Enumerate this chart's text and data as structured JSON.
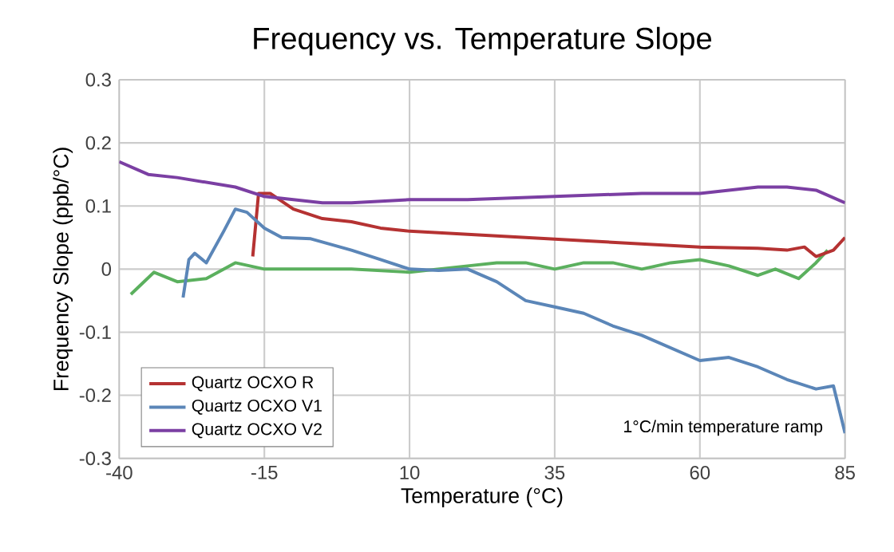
{
  "chart_data": {
    "type": "line",
    "title": "Frequency vs. Temperature Slope",
    "xlabel": "Temperature (°C)",
    "ylabel": "Frequency Slope (ppb/°C)",
    "xlim": [
      -40,
      85
    ],
    "xticks": [
      -40,
      -15,
      10,
      35,
      60,
      85
    ],
    "ylim": [
      -0.3,
      0.3
    ],
    "yticks": [
      -0.3,
      -0.2,
      -0.1,
      0,
      0.1,
      0.2,
      0.3
    ],
    "grid": true,
    "legend": "bottom left",
    "line_style": "solid",
    "marker": "none",
    "annotations": [
      "1°C/min temperature ramp"
    ],
    "series": [
      {
        "color": "#5bb05e",
        "x": [
          -38,
          -34,
          -30,
          -25,
          -20,
          -15,
          -10,
          0,
          10,
          20,
          25,
          30,
          35,
          40,
          45,
          50,
          55,
          60,
          65,
          70,
          73,
          77,
          80,
          82
        ],
        "values": [
          -0.04,
          -0.005,
          -0.02,
          -0.015,
          0.01,
          0.0,
          0.0,
          0.0,
          -0.005,
          0.005,
          0.01,
          0.01,
          0.0,
          0.01,
          0.01,
          0.0,
          0.01,
          0.015,
          0.005,
          -0.01,
          0.0,
          -0.015,
          0.01,
          0.03
        ]
      },
      {
        "name": "Quartz OCXO R",
        "color": "#b53232",
        "x": [
          -17,
          -16,
          -14,
          -10,
          -5,
          0,
          5,
          10,
          20,
          30,
          40,
          50,
          60,
          70,
          75,
          78,
          80,
          83,
          85
        ],
        "values": [
          0.02,
          0.12,
          0.12,
          0.095,
          0.08,
          0.075,
          0.065,
          0.06,
          0.055,
          0.05,
          0.045,
          0.04,
          0.035,
          0.033,
          0.03,
          0.035,
          0.02,
          0.03,
          0.05
        ]
      },
      {
        "name": "Quartz OCXO V1",
        "color": "#5b86b8",
        "x": [
          -29,
          -28,
          -27,
          -25,
          -22,
          -20,
          -18,
          -15,
          -12,
          -7,
          0,
          5,
          10,
          15,
          20,
          25,
          30,
          35,
          40,
          45,
          50,
          55,
          60,
          65,
          70,
          75,
          80,
          83,
          85
        ],
        "values": [
          -0.045,
          0.015,
          0.025,
          0.01,
          0.06,
          0.095,
          0.09,
          0.065,
          0.05,
          0.048,
          0.03,
          0.015,
          0.0,
          -0.002,
          0.0,
          -0.02,
          -0.05,
          -0.06,
          -0.07,
          -0.09,
          -0.105,
          -0.125,
          -0.145,
          -0.14,
          -0.155,
          -0.175,
          -0.19,
          -0.185,
          -0.26
        ]
      },
      {
        "name": "Quartz OCXO V2",
        "color": "#7b3fa3",
        "x": [
          -40,
          -35,
          -30,
          -20,
          -15,
          -10,
          -5,
          0,
          10,
          20,
          35,
          50,
          60,
          70,
          75,
          80,
          85
        ],
        "values": [
          0.17,
          0.15,
          0.145,
          0.13,
          0.115,
          0.11,
          0.105,
          0.105,
          0.11,
          0.11,
          0.115,
          0.12,
          0.12,
          0.13,
          0.13,
          0.125,
          0.105
        ]
      }
    ]
  }
}
